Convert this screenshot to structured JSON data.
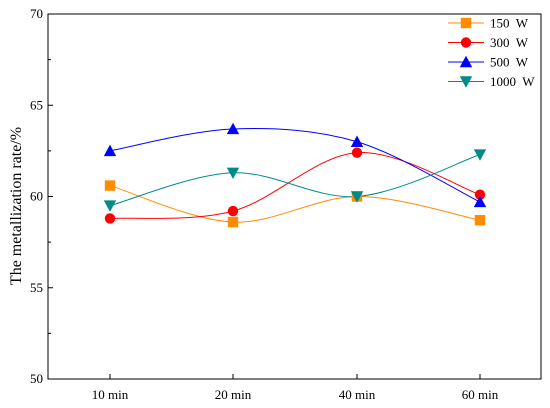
{
  "chart_data": {
    "type": "line",
    "categories": [
      "10 min",
      "20 min",
      "40 min",
      "60 min"
    ],
    "ylabel": "The metallization rate/%",
    "xlabel": "",
    "ylim": [
      50,
      70
    ],
    "yticks": [
      50,
      55,
      60,
      65,
      70
    ],
    "grid": false,
    "legend_position": "top-right",
    "series": [
      {
        "name": "150  W",
        "values": [
          60.6,
          58.6,
          60.0,
          58.7
        ],
        "color": "#ff8c00",
        "marker": "square"
      },
      {
        "name": "300  W",
        "values": [
          58.8,
          59.2,
          62.4,
          60.1
        ],
        "color": "#ff0000",
        "marker": "circle"
      },
      {
        "name": "500  W",
        "values": [
          62.5,
          63.7,
          63.0,
          59.7
        ],
        "color": "#0000ff",
        "marker": "triangle-up"
      },
      {
        "name": "1000  W",
        "values": [
          59.5,
          61.3,
          60.0,
          62.3
        ],
        "color": "#008b8b",
        "marker": "triangle-down"
      }
    ]
  }
}
